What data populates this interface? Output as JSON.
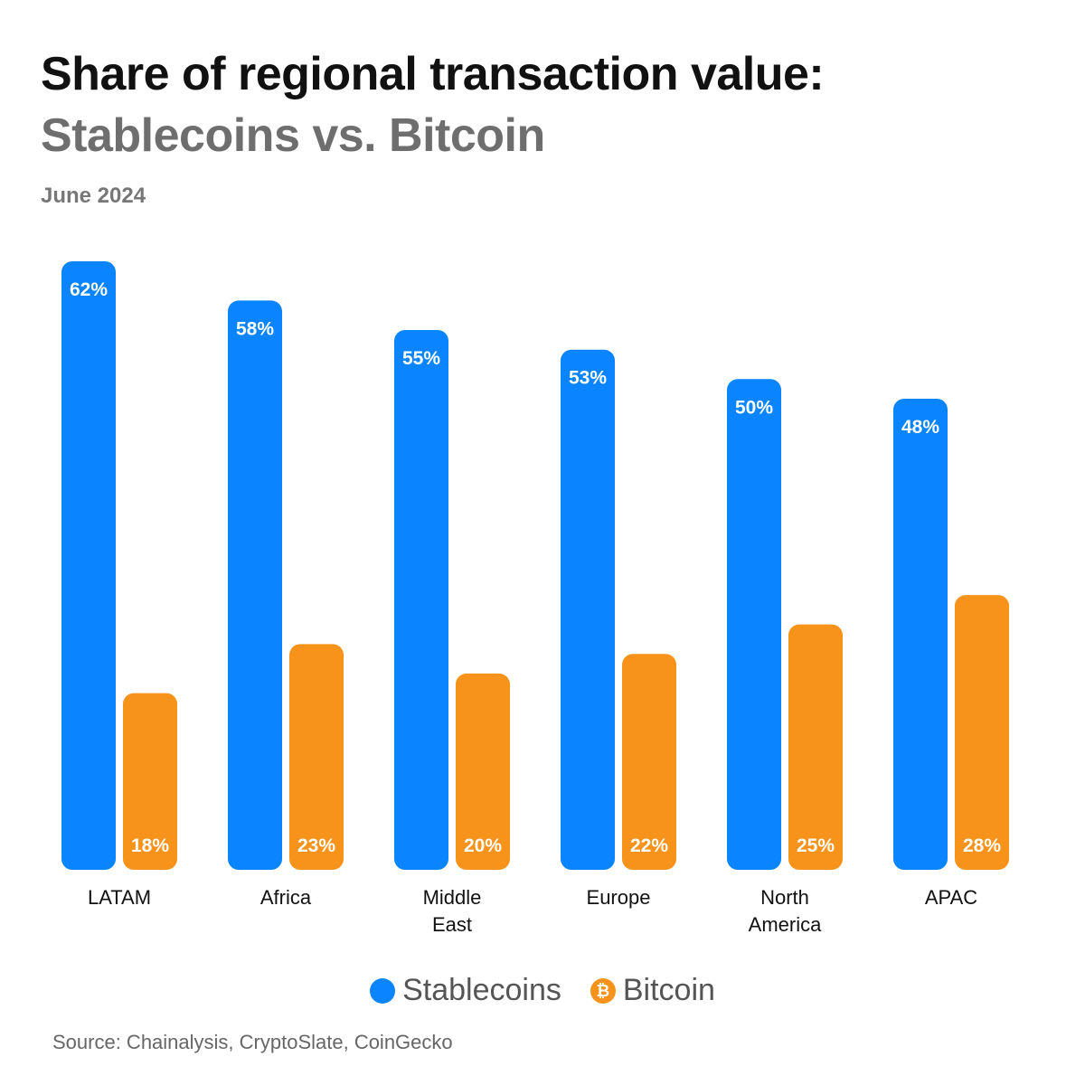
{
  "header": {
    "title": "Share of regional transaction value:",
    "subtitle": "Stablecoins vs. Bitcoin",
    "date": "June 2024"
  },
  "legend": {
    "stablecoins_label": "Stablecoins",
    "bitcoin_label": "Bitcoin",
    "bitcoin_icon": "bitcoin-icon",
    "bitcoin_glyph": "₿"
  },
  "footer": {
    "source": "Source: Chainalysis, CryptoSlate, CoinGecko"
  },
  "colors": {
    "stablecoins": "#0a84ff",
    "bitcoin": "#f7931a",
    "bar_label": "#ffffff",
    "category_label": "#111111"
  },
  "chart_data": {
    "type": "bar",
    "categories": [
      [
        "LATAM"
      ],
      [
        "Africa"
      ],
      [
        "Middle",
        "East"
      ],
      [
        "Europe"
      ],
      [
        "North",
        "America"
      ],
      [
        "APAC"
      ]
    ],
    "series": [
      {
        "name": "Stablecoins",
        "values": [
          62,
          58,
          55,
          53,
          50,
          48
        ],
        "labels": [
          "62%",
          "58%",
          "55%",
          "53%",
          "50%",
          "48%"
        ]
      },
      {
        "name": "Bitcoin",
        "values": [
          18,
          23,
          20,
          22,
          25,
          28
        ],
        "labels": [
          "18%",
          "23%",
          "20%",
          "22%",
          "25%",
          "28%"
        ]
      }
    ],
    "unit": "%",
    "ylim": [
      0,
      62
    ],
    "grid": false,
    "legend_position": "bottom-center"
  }
}
